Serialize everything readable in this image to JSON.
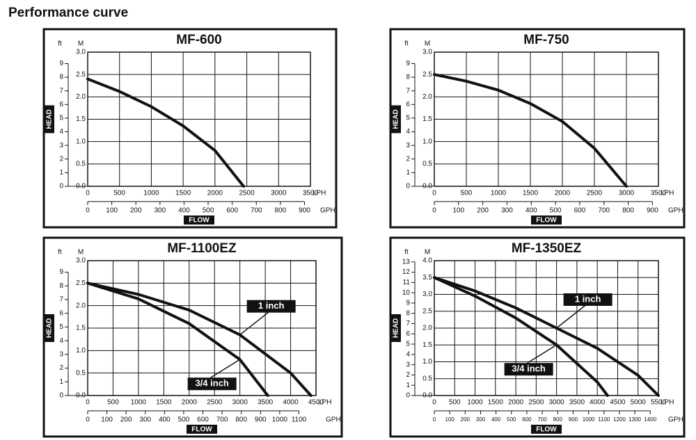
{
  "header": {
    "title": "Performance curve"
  },
  "chart_data": [
    {
      "type": "line",
      "title": "MF-600",
      "ylabel": "HEAD",
      "xlabel": "FLOW",
      "yunit": "M",
      "y2unit": "ft",
      "xunit": "LPH",
      "x2unit": "GPH",
      "color": "#111111",
      "grid": true,
      "xlim": [
        0,
        3500
      ],
      "xticks": [
        0,
        500,
        1000,
        1500,
        2000,
        2500,
        3000,
        3500
      ],
      "ylim": [
        0,
        3
      ],
      "yticks": [
        {
          "value": 0,
          "label": "0.0"
        },
        {
          "value": 0.5,
          "label": "0.5"
        },
        {
          "value": 1,
          "label": "1.0"
        },
        {
          "value": 1.5,
          "label": "1.5"
        },
        {
          "value": 2,
          "label": "2.0"
        },
        {
          "value": 2.5,
          "label": "2.5"
        },
        {
          "value": 3,
          "label": "3.0"
        }
      ],
      "y2lim": [
        0,
        9.84
      ],
      "y2ticks": [
        0,
        1,
        2,
        3,
        4,
        5,
        6,
        7,
        8,
        9
      ],
      "x2lim": [
        0,
        924.6
      ],
      "x2ticks": [
        0,
        100,
        200,
        300,
        400,
        500,
        600,
        700,
        800,
        900
      ],
      "series": [
        {
          "x": [
            0,
            500,
            1000,
            1500,
            2000,
            2450
          ],
          "values": [
            2.4,
            2.12,
            1.78,
            1.35,
            0.8,
            0
          ]
        }
      ]
    },
    {
      "type": "line",
      "title": "MF-750",
      "ylabel": "HEAD",
      "xlabel": "FLOW",
      "yunit": "M",
      "y2unit": "ft",
      "xunit": "LPH",
      "x2unit": "GPH",
      "color": "#111111",
      "grid": true,
      "xlim": [
        0,
        3500
      ],
      "xticks": [
        0,
        500,
        1000,
        1500,
        2000,
        2500,
        3000,
        3500
      ],
      "ylim": [
        0,
        3
      ],
      "yticks": [
        {
          "value": 0,
          "label": "0.0"
        },
        {
          "value": 0.5,
          "label": "0.5"
        },
        {
          "value": 1,
          "label": "1.0"
        },
        {
          "value": 1.5,
          "label": "1.5"
        },
        {
          "value": 2,
          "label": "2.0"
        },
        {
          "value": 2.5,
          "label": "2.5"
        },
        {
          "value": 3,
          "label": "3.0"
        }
      ],
      "y2lim": [
        0,
        9.84
      ],
      "y2ticks": [
        0,
        1,
        2,
        3,
        4,
        5,
        6,
        7,
        8,
        9
      ],
      "x2lim": [
        0,
        924.6
      ],
      "x2ticks": [
        0,
        100,
        200,
        300,
        400,
        500,
        600,
        700,
        800,
        900
      ],
      "series": [
        {
          "x": [
            0,
            500,
            1000,
            1500,
            2000,
            2500,
            3000
          ],
          "values": [
            2.5,
            2.35,
            2.15,
            1.85,
            1.45,
            0.85,
            0
          ]
        }
      ]
    },
    {
      "type": "line",
      "title": "MF-1100EZ",
      "ylabel": "HEAD",
      "xlabel": "FLOW",
      "yunit": "M",
      "y2unit": "ft",
      "xunit": "LPH",
      "x2unit": "GPH",
      "color": "#111111",
      "grid": true,
      "xlim": [
        0,
        4500
      ],
      "xticks": [
        0,
        500,
        1000,
        1500,
        2000,
        2500,
        3000,
        3500,
        4000,
        4500
      ],
      "ylim": [
        0,
        3
      ],
      "yticks": [
        {
          "value": 0,
          "label": "0.0"
        },
        {
          "value": 0.5,
          "label": "0.5"
        },
        {
          "value": 1,
          "label": "1.0"
        },
        {
          "value": 1.5,
          "label": "1.5"
        },
        {
          "value": 2,
          "label": "2.0"
        },
        {
          "value": 2.5,
          "label": "2.5"
        },
        {
          "value": 3,
          "label": "3.0"
        }
      ],
      "y2lim": [
        0,
        9.84
      ],
      "y2ticks": [
        0,
        1,
        2,
        3,
        4,
        5,
        6,
        7,
        8,
        9
      ],
      "x2lim": [
        0,
        1189
      ],
      "x2ticks": [
        0,
        100,
        200,
        300,
        400,
        500,
        600,
        700,
        800,
        900,
        1000,
        1100
      ],
      "series": [
        {
          "name": "1 inch",
          "x": [
            0,
            1000,
            2000,
            3000,
            4000,
            4400
          ],
          "values": [
            2.5,
            2.25,
            1.9,
            1.35,
            0.5,
            0
          ]
        },
        {
          "name": "3/4 inch",
          "x": [
            0,
            1000,
            2000,
            3000,
            3550
          ],
          "values": [
            2.5,
            2.15,
            1.6,
            0.8,
            0
          ]
        }
      ]
    },
    {
      "type": "line",
      "title": "MF-1350EZ",
      "ylabel": "HEAD",
      "xlabel": "FLOW",
      "yunit": "M",
      "y2unit": "ft",
      "xunit": "LPH",
      "x2unit": "GPH",
      "color": "#111111",
      "grid": true,
      "xlim": [
        0,
        5500
      ],
      "xticks": [
        0,
        500,
        1000,
        1500,
        2000,
        2500,
        3000,
        3500,
        4000,
        4500,
        5000,
        5500
      ],
      "ylim": [
        0,
        4
      ],
      "yticks": [
        {
          "value": 0,
          "label": "0.0"
        },
        {
          "value": 0.5,
          "label": "0.5"
        },
        {
          "value": 1,
          "label": "1.0"
        },
        {
          "value": 1.5,
          "label": "1.5"
        },
        {
          "value": 2,
          "label": "2.0"
        },
        {
          "value": 2.5,
          "label": "2.5"
        },
        {
          "value": 3,
          "label": "3.0"
        },
        {
          "value": 3.5,
          "label": "3.5"
        },
        {
          "value": 4,
          "label": "4.0"
        }
      ],
      "y2lim": [
        0,
        13.12
      ],
      "y2ticks": [
        0,
        1,
        2,
        3,
        4,
        5,
        6,
        7,
        8,
        9,
        10,
        11,
        12,
        13
      ],
      "x2lim": [
        0,
        1453
      ],
      "x2ticks": [
        0,
        100,
        200,
        300,
        400,
        500,
        600,
        700,
        800,
        900,
        1000,
        1100,
        1200,
        1300,
        1400
      ],
      "series": [
        {
          "name": "1 inch",
          "x": [
            0,
            1000,
            2000,
            3000,
            4000,
            5000,
            5500
          ],
          "values": [
            3.5,
            3.1,
            2.6,
            2.0,
            1.4,
            0.6,
            0
          ]
        },
        {
          "name": "3/4 inch",
          "x": [
            0,
            1000,
            2000,
            3000,
            4000,
            4250
          ],
          "values": [
            3.5,
            2.95,
            2.3,
            1.5,
            0.4,
            0
          ]
        }
      ]
    }
  ]
}
